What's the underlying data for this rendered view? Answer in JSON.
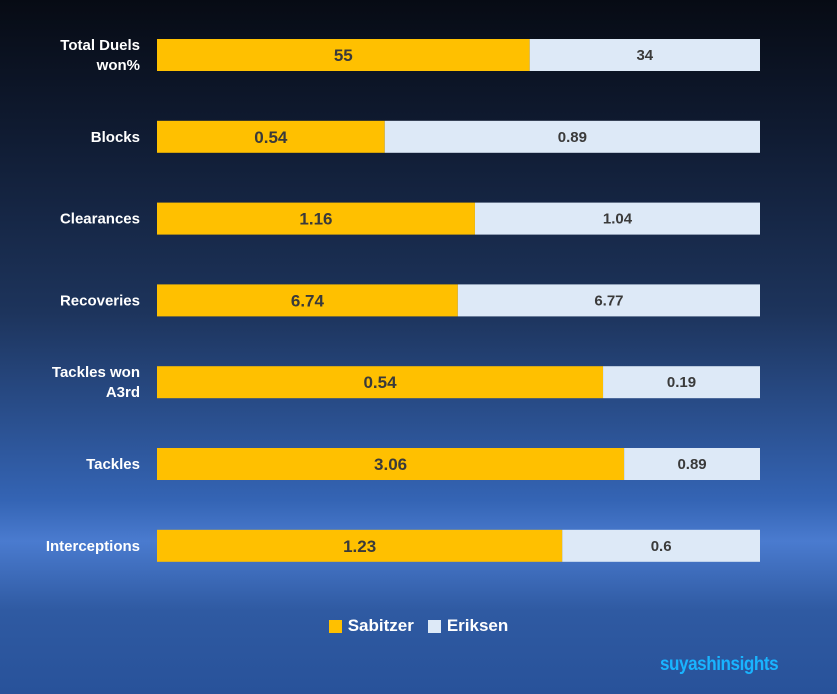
{
  "chart_data": {
    "type": "bar",
    "orientation": "horizontal",
    "stacking": "percent",
    "categories": [
      "Total Duels won%",
      "Blocks",
      "Clearances",
      "Recoveries",
      "Tackles won A3rd",
      "Tackles",
      "Interceptions"
    ],
    "category_lines": [
      [
        "Total Duels",
        "won%"
      ],
      [
        "Blocks"
      ],
      [
        "Clearances"
      ],
      [
        "Recoveries"
      ],
      [
        "Tackles won",
        "A3rd"
      ],
      [
        "Tackles"
      ],
      [
        "Interceptions"
      ]
    ],
    "series": [
      {
        "name": "Sabitzer",
        "color": "#ffc000",
        "values": [
          55,
          0.54,
          1.16,
          6.74,
          0.54,
          3.06,
          1.23
        ]
      },
      {
        "name": "Eriksen",
        "color": "#dde9f7",
        "values": [
          34,
          0.89,
          1.04,
          6.77,
          0.19,
          0.89,
          0.6
        ]
      }
    ],
    "legend_position": "bottom",
    "grid": false
  },
  "watermark": "suyashinsights"
}
